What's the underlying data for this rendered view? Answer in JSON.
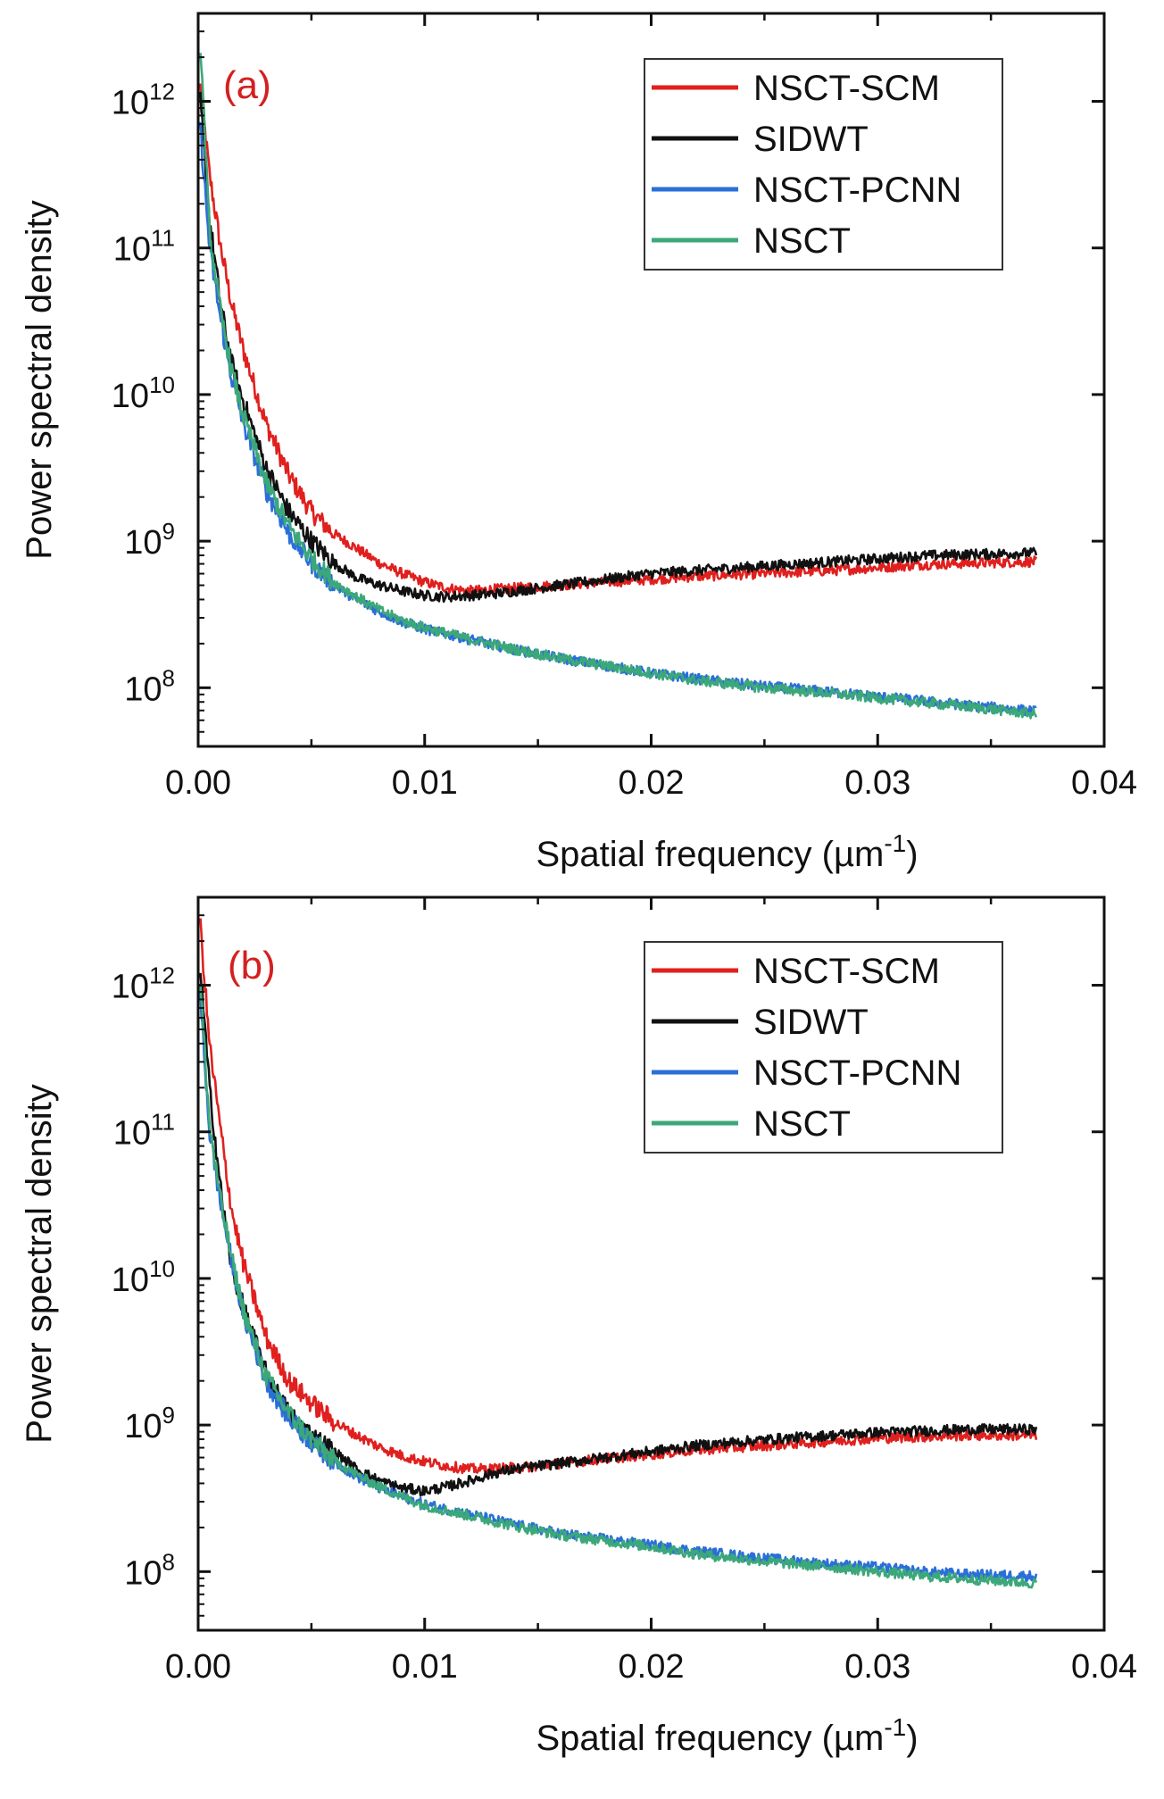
{
  "chart_data": [
    {
      "type": "line",
      "panel_label": "(a)",
      "panel_label_color": "#d42020",
      "xlabel": "Spatial frequency",
      "xunit_base": "(µm",
      "xunit_exp": "-1",
      "xunit_close": ")",
      "ylabel": "Power spectral density",
      "xlim": [
        0,
        0.04
      ],
      "ylim_log10": [
        7.6,
        12.6
      ],
      "x_ticks": [
        {
          "value": 0,
          "label": "0.00"
        },
        {
          "value": 0.01,
          "label": "0.01"
        },
        {
          "value": 0.02,
          "label": "0.02"
        },
        {
          "value": 0.03,
          "label": "0.03"
        },
        {
          "value": 0.04,
          "label": "0.04"
        }
      ],
      "y_ticks": [
        {
          "exp": 8,
          "base": "10",
          "sup": "8"
        },
        {
          "exp": 9,
          "base": "10",
          "sup": "9"
        },
        {
          "exp": 10,
          "base": "10",
          "sup": "10"
        },
        {
          "exp": 11,
          "base": "10",
          "sup": "11"
        },
        {
          "exp": 12,
          "base": "10",
          "sup": "12"
        }
      ],
      "legend_position": "top-right",
      "series": [
        {
          "name": "NSCT-SCM",
          "color": "#e0201e",
          "x": [
            0.0001,
            0.0005,
            0.001,
            0.0015,
            0.002,
            0.003,
            0.004,
            0.005,
            0.006,
            0.007,
            0.008,
            0.009,
            0.01,
            0.011,
            0.012,
            0.013,
            0.014,
            0.015,
            0.016,
            0.018,
            0.02,
            0.022,
            0.025,
            0.028,
            0.03,
            0.032,
            0.034,
            0.037
          ],
          "y_log10": [
            12.1,
            11.5,
            11.0,
            10.6,
            10.3,
            9.8,
            9.45,
            9.2,
            9.05,
            8.95,
            8.85,
            8.78,
            8.72,
            8.68,
            8.66,
            8.67,
            8.68,
            8.69,
            8.7,
            8.72,
            8.74,
            8.76,
            8.78,
            8.8,
            8.82,
            8.84,
            8.85,
            8.86
          ]
        },
        {
          "name": "SIDWT",
          "color": "#111111",
          "x": [
            0.0001,
            0.0005,
            0.001,
            0.0015,
            0.002,
            0.003,
            0.004,
            0.005,
            0.006,
            0.007,
            0.008,
            0.009,
            0.01,
            0.011,
            0.012,
            0.013,
            0.014,
            0.015,
            0.016,
            0.018,
            0.02,
            0.022,
            0.025,
            0.028,
            0.03,
            0.032,
            0.034,
            0.037
          ],
          "y_log10": [
            12.0,
            11.2,
            10.6,
            10.2,
            9.95,
            9.5,
            9.2,
            9.0,
            8.85,
            8.75,
            8.7,
            8.66,
            8.63,
            8.62,
            8.63,
            8.64,
            8.66,
            8.68,
            8.7,
            8.74,
            8.78,
            8.8,
            8.83,
            8.86,
            8.88,
            8.9,
            8.91,
            8.92
          ]
        },
        {
          "name": "NSCT-PCNN",
          "color": "#2a6fd8",
          "x": [
            0.0001,
            0.0005,
            0.001,
            0.0015,
            0.002,
            0.003,
            0.004,
            0.005,
            0.006,
            0.007,
            0.008,
            0.009,
            0.01,
            0.012,
            0.014,
            0.016,
            0.018,
            0.02,
            0.022,
            0.025,
            0.028,
            0.03,
            0.032,
            0.034,
            0.037
          ],
          "y_log10": [
            11.8,
            11.0,
            10.5,
            10.1,
            9.8,
            9.35,
            9.05,
            8.85,
            8.7,
            8.6,
            8.52,
            8.45,
            8.4,
            8.33,
            8.26,
            8.2,
            8.15,
            8.1,
            8.06,
            8.01,
            7.97,
            7.94,
            7.91,
            7.88,
            7.84
          ]
        },
        {
          "name": "NSCT",
          "color": "#3ca87a",
          "x": [
            0.0001,
            0.0005,
            0.001,
            0.0015,
            0.002,
            0.003,
            0.004,
            0.005,
            0.006,
            0.007,
            0.008,
            0.009,
            0.01,
            0.012,
            0.014,
            0.016,
            0.018,
            0.02,
            0.022,
            0.025,
            0.028,
            0.03,
            0.032,
            0.034,
            0.037
          ],
          "y_log10": [
            12.4,
            11.1,
            10.55,
            10.15,
            9.85,
            9.4,
            9.1,
            8.88,
            8.72,
            8.62,
            8.53,
            8.46,
            8.41,
            8.33,
            8.26,
            8.2,
            8.15,
            8.1,
            8.05,
            8.0,
            7.96,
            7.93,
            7.9,
            7.87,
            7.82
          ]
        }
      ]
    },
    {
      "type": "line",
      "panel_label": "(b)",
      "panel_label_color": "#d42020",
      "xlabel": "Spatial frequency",
      "xunit_base": "(µm",
      "xunit_exp": "-1",
      "xunit_close": ")",
      "ylabel": "Power spectral density",
      "xlim": [
        0,
        0.04
      ],
      "ylim_log10": [
        7.6,
        12.6
      ],
      "x_ticks": [
        {
          "value": 0,
          "label": "0.00"
        },
        {
          "value": 0.01,
          "label": "0.01"
        },
        {
          "value": 0.02,
          "label": "0.02"
        },
        {
          "value": 0.03,
          "label": "0.03"
        },
        {
          "value": 0.04,
          "label": "0.04"
        }
      ],
      "y_ticks": [
        {
          "exp": 8,
          "base": "10",
          "sup": "8"
        },
        {
          "exp": 9,
          "base": "10",
          "sup": "9"
        },
        {
          "exp": 10,
          "base": "10",
          "sup": "10"
        },
        {
          "exp": 11,
          "base": "10",
          "sup": "11"
        },
        {
          "exp": 12,
          "base": "10",
          "sup": "12"
        }
      ],
      "legend_position": "top-right",
      "series": [
        {
          "name": "NSCT-SCM",
          "color": "#e0201e",
          "x": [
            0.0001,
            0.0005,
            0.001,
            0.0015,
            0.002,
            0.003,
            0.004,
            0.005,
            0.006,
            0.007,
            0.008,
            0.009,
            0.01,
            0.011,
            0.012,
            0.013,
            0.014,
            0.015,
            0.016,
            0.018,
            0.02,
            0.022,
            0.025,
            0.028,
            0.03,
            0.032,
            0.034,
            0.037
          ],
          "y_log10": [
            12.4,
            11.6,
            11.0,
            10.45,
            10.1,
            9.6,
            9.3,
            9.15,
            9.02,
            8.93,
            8.85,
            8.79,
            8.75,
            8.72,
            8.7,
            8.7,
            8.71,
            8.72,
            8.74,
            8.77,
            8.8,
            8.83,
            8.86,
            8.89,
            8.91,
            8.92,
            8.93,
            8.93
          ]
        },
        {
          "name": "SIDWT",
          "color": "#111111",
          "x": [
            0.0001,
            0.0005,
            0.001,
            0.0015,
            0.002,
            0.003,
            0.004,
            0.005,
            0.006,
            0.007,
            0.008,
            0.009,
            0.01,
            0.011,
            0.012,
            0.013,
            0.014,
            0.015,
            0.016,
            0.018,
            0.02,
            0.022,
            0.025,
            0.028,
            0.03,
            0.032,
            0.034,
            0.037
          ],
          "y_log10": [
            12.1,
            11.3,
            10.6,
            10.05,
            9.8,
            9.35,
            9.08,
            8.93,
            8.82,
            8.7,
            8.62,
            8.57,
            8.55,
            8.58,
            8.62,
            8.67,
            8.7,
            8.72,
            8.74,
            8.78,
            8.82,
            8.86,
            8.9,
            8.93,
            8.95,
            8.96,
            8.97,
            8.97
          ]
        },
        {
          "name": "NSCT-PCNN",
          "color": "#2a6fd8",
          "x": [
            0.0001,
            0.0005,
            0.001,
            0.0015,
            0.002,
            0.003,
            0.004,
            0.005,
            0.006,
            0.007,
            0.008,
            0.009,
            0.01,
            0.012,
            0.014,
            0.016,
            0.018,
            0.02,
            0.022,
            0.025,
            0.028,
            0.03,
            0.032,
            0.034,
            0.037
          ],
          "y_log10": [
            11.9,
            11.0,
            10.5,
            10.1,
            9.75,
            9.3,
            9.05,
            8.88,
            8.75,
            8.65,
            8.57,
            8.51,
            8.46,
            8.39,
            8.32,
            8.26,
            8.22,
            8.18,
            8.14,
            8.09,
            8.05,
            8.03,
            8.0,
            7.98,
            7.97
          ]
        },
        {
          "name": "NSCT",
          "color": "#3ca87a",
          "x": [
            0.0001,
            0.0005,
            0.001,
            0.0015,
            0.002,
            0.003,
            0.004,
            0.005,
            0.006,
            0.007,
            0.008,
            0.009,
            0.01,
            0.012,
            0.014,
            0.016,
            0.018,
            0.02,
            0.022,
            0.025,
            0.028,
            0.03,
            0.032,
            0.034,
            0.037
          ],
          "y_log10": [
            12.0,
            11.05,
            10.52,
            10.12,
            9.78,
            9.33,
            9.08,
            8.9,
            8.76,
            8.66,
            8.58,
            8.51,
            8.45,
            8.38,
            8.31,
            8.25,
            8.21,
            8.17,
            8.12,
            8.07,
            8.03,
            8.0,
            7.97,
            7.95,
            7.92
          ]
        }
      ]
    }
  ]
}
